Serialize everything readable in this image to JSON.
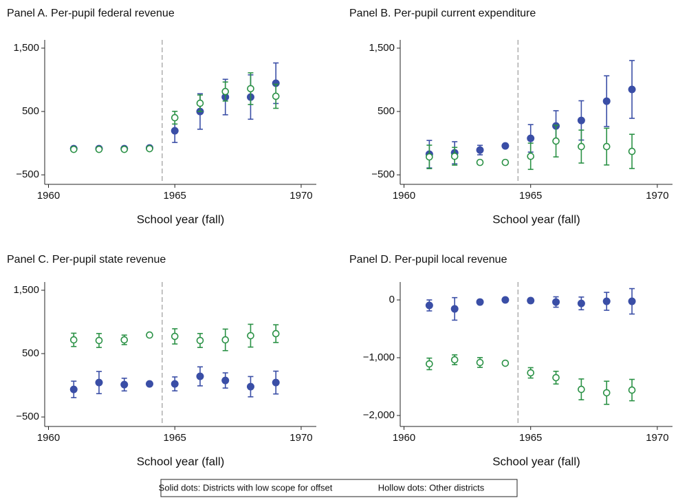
{
  "chart_data": [
    {
      "type": "scatter",
      "title": "Panel A. Per-pupil federal revenue",
      "xlabel": "School year (fall)",
      "x": [
        1961,
        1962,
        1963,
        1964,
        1965,
        1966,
        1967,
        1968,
        1969
      ],
      "xlim": [
        1959.85,
        1970.6
      ],
      "xticks": [
        1960,
        1965,
        1970
      ],
      "ylim": [
        -650,
        1630
      ],
      "yticks": [
        {
          "value": -500,
          "label": "−500"
        },
        500,
        {
          "value": 1500,
          "label": "1,500"
        }
      ],
      "vline": 1964.5,
      "series": [
        {
          "name": "Solid dots: Districts with low scope for offset",
          "color": "#3a4ea6",
          "marker": "filled",
          "values": [
            -87,
            -87,
            -87,
            -76,
            196,
            500,
            728,
            728,
            946
          ],
          "errors": [
            20,
            20,
            20,
            null,
            185,
            280,
            280,
            350,
            320
          ]
        },
        {
          "name": "Hollow dots: Other districts",
          "color": "#2a9145",
          "marker": "hollow",
          "values": [
            -98,
            -98,
            -98,
            -87,
            402,
            630,
            815,
            860,
            740
          ],
          "errors": [
            20,
            20,
            20,
            null,
            100,
            130,
            150,
            250,
            190
          ]
        }
      ]
    },
    {
      "type": "scatter",
      "title": "Panel B. Per-pupil current expenditure",
      "xlabel": "School year (fall)",
      "x": [
        1961,
        1962,
        1963,
        1964,
        1965,
        1966,
        1967,
        1968,
        1969
      ],
      "xlim": [
        1959.85,
        1970.6
      ],
      "xticks": [
        1960,
        1965,
        1970
      ],
      "ylim": [
        -650,
        1630
      ],
      "yticks": [
        {
          "value": -500,
          "label": "−500"
        },
        500,
        {
          "value": 1500,
          "label": "1,500"
        }
      ],
      "vline": 1964.5,
      "series": [
        {
          "color": "#3a4ea6",
          "marker": "filled",
          "values": [
            -174,
            -152,
            -109,
            -43,
            76,
            272,
            359,
            663,
            848
          ],
          "errors": [
            217,
            175,
            75,
            null,
            217,
            240,
            310,
            400,
            456
          ]
        },
        {
          "color": "#2a9145",
          "marker": "hollow",
          "values": [
            -217,
            -207,
            -304,
            -304,
            -207,
            33,
            -54,
            -54,
            -130
          ],
          "errors": [
            185,
            140,
            30,
            null,
            207,
            250,
            260,
            290,
            270
          ]
        }
      ]
    },
    {
      "type": "scatter",
      "title": "Panel C. Per-pupil state revenue",
      "xlabel": "School year (fall)",
      "x": [
        1961,
        1962,
        1963,
        1964,
        1965,
        1966,
        1967,
        1968,
        1969
      ],
      "xlim": [
        1959.85,
        1970.6
      ],
      "xticks": [
        1960,
        1965,
        1970
      ],
      "ylim": [
        -650,
        1630
      ],
      "yticks": [
        {
          "value": -500,
          "label": "−500"
        },
        500,
        {
          "value": 1500,
          "label": "1,500"
        }
      ],
      "vline": 1964.5,
      "series": [
        {
          "color": "#3a4ea6",
          "marker": "filled",
          "values": [
            -65,
            43,
            11,
            22,
            22,
            141,
            76,
            -22,
            43
          ],
          "errors": [
            130,
            175,
            100,
            null,
            110,
            150,
            120,
            160,
            180
          ]
        },
        {
          "color": "#2a9145",
          "marker": "hollow",
          "values": [
            717,
            707,
            717,
            793,
            772,
            707,
            717,
            783,
            815
          ],
          "errors": [
            105,
            110,
            75,
            null,
            120,
            110,
            170,
            180,
            140
          ]
        }
      ]
    },
    {
      "type": "scatter",
      "title": "Panel D. Per-pupil local revenue",
      "xlabel": "School year (fall)",
      "x": [
        1961,
        1962,
        1963,
        1964,
        1965,
        1966,
        1967,
        1968,
        1969
      ],
      "xlim": [
        1959.85,
        1970.6
      ],
      "xticks": [
        1960,
        1965,
        1970
      ],
      "ylim": [
        -2190,
        310
      ],
      "yticks": [
        {
          "value": -2000,
          "label": "−2,000"
        },
        {
          "value": -1000,
          "label": "−1,000"
        },
        0
      ],
      "vline": 1964.5,
      "series": [
        {
          "color": "#3a4ea6",
          "marker": "filled",
          "values": [
            -95,
            -155,
            -36,
            0,
            -12,
            -36,
            -60,
            -24,
            -24
          ],
          "errors": [
            95,
            195,
            40,
            null,
            40,
            90,
            110,
            155,
            220
          ]
        },
        {
          "color": "#2a9145",
          "marker": "hollow",
          "values": [
            -1107,
            -1036,
            -1083,
            -1095,
            -1262,
            -1345,
            -1548,
            -1607,
            -1560
          ],
          "errors": [
            100,
            85,
            85,
            null,
            90,
            110,
            180,
            200,
            185
          ]
        }
      ]
    }
  ]
}
